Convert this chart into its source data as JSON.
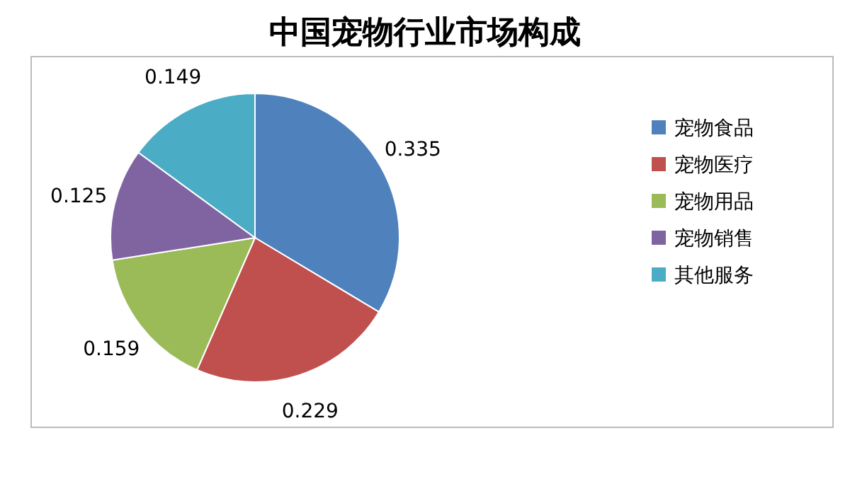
{
  "chart_data": {
    "type": "pie",
    "title": "中国宠物行业市场构成",
    "categories": [
      "宠物食品",
      "宠物医疗",
      "宠物用品",
      "宠物销售",
      "其他服务"
    ],
    "values": [
      0.335,
      0.229,
      0.159,
      0.125,
      0.149
    ],
    "colors": [
      "#4f81bd",
      "#c0504d",
      "#9bbb59",
      "#8064a2",
      "#4bacc6"
    ],
    "data_labels": true,
    "legend": "right"
  }
}
